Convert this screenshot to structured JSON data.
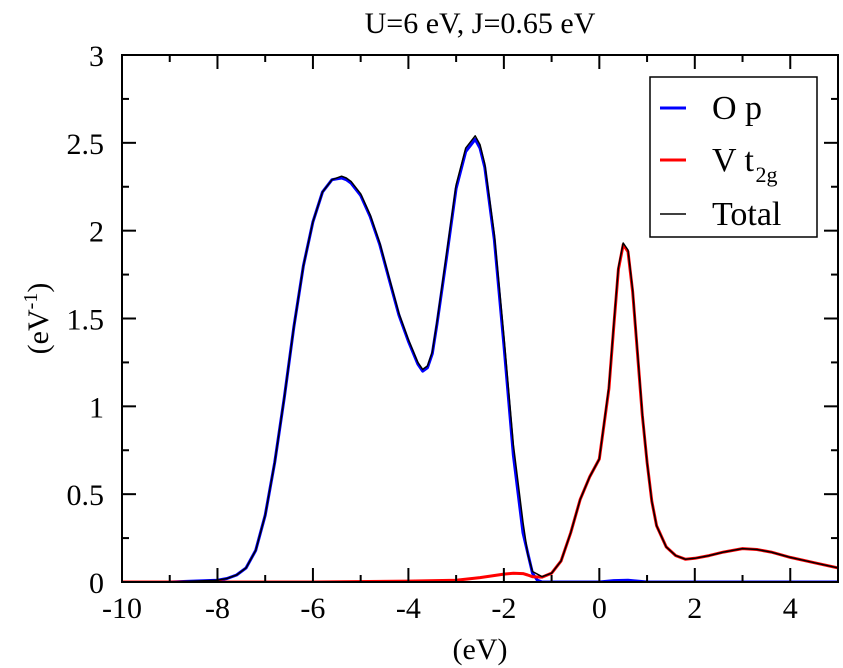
{
  "chart_data": {
    "type": "line",
    "title": "U=6 eV, J=0.65 eV",
    "xlabel": "(eV)",
    "ylabel": {
      "base": "(eV",
      "sup": "-1",
      "close": ")"
    },
    "xlim": [
      -10,
      5
    ],
    "ylim": [
      0,
      3
    ],
    "xticks": [
      -10,
      -8,
      -6,
      -4,
      -2,
      0,
      2,
      4
    ],
    "xtick_labels": [
      "-10",
      "-8",
      "-6",
      "-4",
      "-2",
      "0",
      "2",
      "4"
    ],
    "yticks": [
      0,
      0.5,
      1,
      1.5,
      2,
      2.5,
      3
    ],
    "ytick_labels": [
      "0",
      "0.5",
      "1",
      "1.5",
      "2",
      "2.5",
      "3"
    ],
    "legend_position": "top-right",
    "series": [
      {
        "id": "op",
        "name": "O p",
        "legend_main": "O p",
        "color": "#0000ff",
        "x": [
          -10,
          -9,
          -8.5,
          -8,
          -7.8,
          -7.6,
          -7.4,
          -7.2,
          -7.0,
          -6.8,
          -6.6,
          -6.4,
          -6.2,
          -6.0,
          -5.8,
          -5.6,
          -5.4,
          -5.3,
          -5.2,
          -5.0,
          -4.8,
          -4.6,
          -4.4,
          -4.2,
          -4.0,
          -3.8,
          -3.7,
          -3.6,
          -3.5,
          -3.4,
          -3.2,
          -3.0,
          -2.8,
          -2.6,
          -2.5,
          -2.4,
          -2.2,
          -2.0,
          -1.8,
          -1.6,
          -1.4,
          -1.3,
          -1.2,
          -1.0,
          -0.5,
          0,
          0.3,
          0.6,
          0.8,
          1.0,
          2,
          3,
          4,
          5
        ],
        "y": [
          0.0,
          0.0,
          0.005,
          0.01,
          0.02,
          0.04,
          0.08,
          0.18,
          0.38,
          0.68,
          1.05,
          1.45,
          1.8,
          2.05,
          2.22,
          2.29,
          2.3,
          2.29,
          2.27,
          2.2,
          2.08,
          1.92,
          1.72,
          1.52,
          1.37,
          1.24,
          1.2,
          1.22,
          1.3,
          1.47,
          1.85,
          2.24,
          2.45,
          2.52,
          2.47,
          2.36,
          1.95,
          1.35,
          0.72,
          0.28,
          0.05,
          0.01,
          0.0,
          0.0,
          0.0,
          0.0,
          0.008,
          0.01,
          0.005,
          0.0,
          0.0,
          0.0,
          0.0,
          0.0
        ]
      },
      {
        "id": "vt2g",
        "name": "V t2g",
        "legend_main": "V t",
        "legend_sub": "2g",
        "color": "#ff0000",
        "x": [
          -10,
          -8,
          -6,
          -4,
          -3,
          -2.5,
          -2.0,
          -1.8,
          -1.6,
          -1.5,
          -1.4,
          -1.2,
          -1.0,
          -0.8,
          -0.6,
          -0.4,
          -0.2,
          0.0,
          0.2,
          0.3,
          0.4,
          0.5,
          0.6,
          0.7,
          0.8,
          0.9,
          1.0,
          1.1,
          1.2,
          1.4,
          1.6,
          1.8,
          2.0,
          2.3,
          2.6,
          3.0,
          3.3,
          3.6,
          4.0,
          4.5,
          5.0
        ],
        "y": [
          0.0,
          0.0,
          0.0,
          0.005,
          0.01,
          0.025,
          0.045,
          0.05,
          0.048,
          0.04,
          0.03,
          0.028,
          0.05,
          0.12,
          0.28,
          0.47,
          0.6,
          0.7,
          1.1,
          1.45,
          1.78,
          1.92,
          1.88,
          1.65,
          1.3,
          0.95,
          0.68,
          0.46,
          0.32,
          0.2,
          0.15,
          0.13,
          0.135,
          0.15,
          0.17,
          0.19,
          0.185,
          0.17,
          0.14,
          0.11,
          0.08
        ]
      },
      {
        "id": "total",
        "name": "Total",
        "legend_main": "Total",
        "color": "#000000",
        "x": [
          -10,
          -9,
          -8.5,
          -8,
          -7.8,
          -7.6,
          -7.4,
          -7.2,
          -7.0,
          -6.8,
          -6.6,
          -6.4,
          -6.2,
          -6.0,
          -5.8,
          -5.6,
          -5.4,
          -5.3,
          -5.2,
          -5.0,
          -4.8,
          -4.6,
          -4.4,
          -4.2,
          -4.0,
          -3.8,
          -3.7,
          -3.6,
          -3.5,
          -3.4,
          -3.2,
          -3.0,
          -2.8,
          -2.6,
          -2.5,
          -2.4,
          -2.2,
          -2.0,
          -1.8,
          -1.6,
          -1.5,
          -1.4,
          -1.2,
          -1.0,
          -0.8,
          -0.6,
          -0.4,
          -0.2,
          0.0,
          0.2,
          0.3,
          0.4,
          0.5,
          0.6,
          0.7,
          0.8,
          0.9,
          1.0,
          1.1,
          1.2,
          1.4,
          1.6,
          1.8,
          2.0,
          2.3,
          2.6,
          3.0,
          3.3,
          3.6,
          4.0,
          4.5,
          5.0
        ],
        "y": [
          0.0,
          0.0,
          0.005,
          0.01,
          0.02,
          0.04,
          0.08,
          0.18,
          0.38,
          0.68,
          1.05,
          1.45,
          1.8,
          2.05,
          2.22,
          2.29,
          2.31,
          2.3,
          2.28,
          2.21,
          2.09,
          1.93,
          1.73,
          1.53,
          1.38,
          1.25,
          1.21,
          1.23,
          1.31,
          1.48,
          1.87,
          2.26,
          2.47,
          2.54,
          2.49,
          2.38,
          1.98,
          1.4,
          0.78,
          0.34,
          0.16,
          0.06,
          0.03,
          0.05,
          0.12,
          0.28,
          0.47,
          0.6,
          0.7,
          1.11,
          1.46,
          1.79,
          1.93,
          1.89,
          1.66,
          1.31,
          0.96,
          0.68,
          0.46,
          0.32,
          0.2,
          0.15,
          0.13,
          0.135,
          0.15,
          0.17,
          0.19,
          0.185,
          0.17,
          0.14,
          0.11,
          0.08
        ]
      }
    ]
  }
}
